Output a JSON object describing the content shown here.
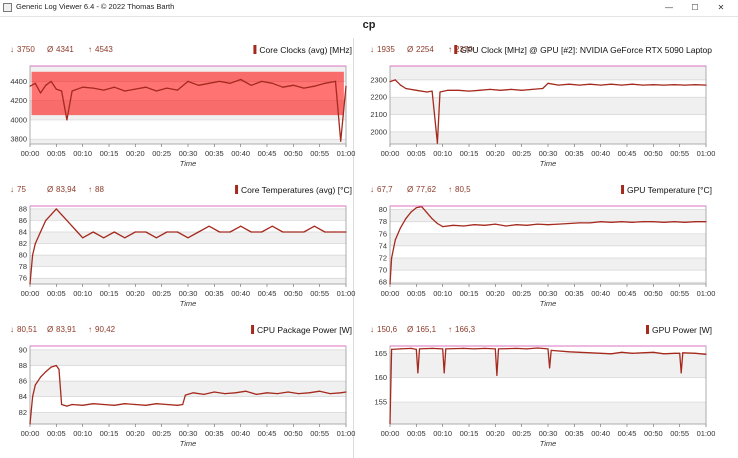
{
  "window": {
    "app_title": "Generic Log Viewer 6.4 - © 2022 Thomas Barth",
    "minimize_glyph": "—",
    "maximize_glyph": "☐",
    "close_glyph": "✕"
  },
  "page_title": "cp",
  "colors": {
    "series": "#a52a1e",
    "band": "#ff0000",
    "stat_text": "#8b3a2a",
    "glitch": "#ff4dd2",
    "plot_bg_light": "#ffffff",
    "plot_bg_dark": "#f0f0f0",
    "grid": "#d4d4d4"
  },
  "chart_data": [
    {
      "id": "core-clocks",
      "type": "line",
      "title": "Core Clocks (avg) [MHz]",
      "stats": {
        "min": "3750",
        "avg": "4341",
        "max": "4543"
      },
      "xlabel": "Time",
      "x_ticks": [
        "00:00",
        "00:05",
        "00:10",
        "00:15",
        "00:20",
        "00:25",
        "00:30",
        "00:35",
        "00:40",
        "00:45",
        "00:50",
        "00:55",
        "01:00"
      ],
      "y_ticks": [
        3800,
        4000,
        4200,
        4400
      ],
      "ylim": [
        3750,
        4560
      ],
      "series": [
        {
          "values": [
            [
              0,
              4350
            ],
            [
              1,
              4380
            ],
            [
              2,
              4280
            ],
            [
              3,
              4360
            ],
            [
              4,
              4400
            ],
            [
              5,
              4320
            ],
            [
              6,
              4300
            ],
            [
              7,
              4000
            ],
            [
              8,
              4300
            ],
            [
              10,
              4340
            ],
            [
              12,
              4330
            ],
            [
              14,
              4310
            ],
            [
              16,
              4340
            ],
            [
              18,
              4300
            ],
            [
              20,
              4320
            ],
            [
              22,
              4340
            ],
            [
              24,
              4300
            ],
            [
              26,
              4330
            ],
            [
              28,
              4310
            ],
            [
              30,
              4400
            ],
            [
              32,
              4360
            ],
            [
              34,
              4380
            ],
            [
              36,
              4400
            ],
            [
              38,
              4380
            ],
            [
              40,
              4420
            ],
            [
              42,
              4360
            ],
            [
              44,
              4400
            ],
            [
              46,
              4380
            ],
            [
              48,
              4340
            ],
            [
              50,
              4360
            ],
            [
              52,
              4330
            ],
            [
              54,
              4350
            ],
            [
              56,
              4380
            ],
            [
              58,
              4400
            ],
            [
              59,
              3780
            ],
            [
              60,
              4350
            ]
          ]
        }
      ],
      "band": {
        "low": 4050,
        "high": 4500
      }
    },
    {
      "id": "gpu-clock",
      "type": "line",
      "title": "GPU Clock [MHz] @ GPU [#2]: NVIDIA GeForce RTX 5090 Laptop",
      "stats": {
        "min": "1935",
        "avg": "2254",
        "max": "2370"
      },
      "xlabel": "Time",
      "x_ticks": [
        "00:00",
        "00:05",
        "00:10",
        "00:15",
        "00:20",
        "00:25",
        "00:30",
        "00:35",
        "00:40",
        "00:45",
        "00:50",
        "00:55",
        "01:00"
      ],
      "y_ticks": [
        2000,
        2100,
        2200,
        2300
      ],
      "ylim": [
        1930,
        2380
      ],
      "series": [
        {
          "values": [
            [
              0,
              2290
            ],
            [
              1,
              2300
            ],
            [
              2,
              2270
            ],
            [
              3,
              2250
            ],
            [
              5,
              2240
            ],
            [
              7,
              2230
            ],
            [
              8,
              2235
            ],
            [
              9,
              1935
            ],
            [
              9.5,
              2230
            ],
            [
              11,
              2240
            ],
            [
              13,
              2240
            ],
            [
              15,
              2235
            ],
            [
              17,
              2240
            ],
            [
              19,
              2245
            ],
            [
              21,
              2240
            ],
            [
              23,
              2245
            ],
            [
              25,
              2240
            ],
            [
              27,
              2245
            ],
            [
              29,
              2250
            ],
            [
              30,
              2280
            ],
            [
              32,
              2270
            ],
            [
              34,
              2275
            ],
            [
              36,
              2270
            ],
            [
              38,
              2275
            ],
            [
              40,
              2270
            ],
            [
              42,
              2275
            ],
            [
              44,
              2270
            ],
            [
              46,
              2275
            ],
            [
              48,
              2270
            ],
            [
              50,
              2272
            ],
            [
              52,
              2270
            ],
            [
              54,
              2272
            ],
            [
              56,
              2270
            ],
            [
              58,
              2272
            ],
            [
              60,
              2270
            ]
          ]
        }
      ]
    },
    {
      "id": "core-temperatures",
      "type": "line",
      "title": "Core Temperatures (avg) [°C]",
      "stats": {
        "min": "75",
        "avg": "83,94",
        "max": "88"
      },
      "xlabel": "Time",
      "x_ticks": [
        "00:00",
        "00:05",
        "00:10",
        "00:15",
        "00:20",
        "00:25",
        "00:30",
        "00:35",
        "00:40",
        "00:45",
        "00:50",
        "00:55",
        "01:00"
      ],
      "y_ticks": [
        76,
        78,
        80,
        82,
        84,
        86,
        88
      ],
      "ylim": [
        75,
        88.5
      ],
      "series": [
        {
          "values": [
            [
              0,
              75
            ],
            [
              0.5,
              80
            ],
            [
              1,
              82
            ],
            [
              2,
              84
            ],
            [
              3,
              86
            ],
            [
              4,
              87
            ],
            [
              5,
              88
            ],
            [
              6,
              87
            ],
            [
              7,
              86
            ],
            [
              8,
              85
            ],
            [
              9,
              84
            ],
            [
              10,
              83
            ],
            [
              12,
              84
            ],
            [
              14,
              83
            ],
            [
              16,
              84
            ],
            [
              18,
              83
            ],
            [
              20,
              84
            ],
            [
              22,
              84
            ],
            [
              24,
              83
            ],
            [
              26,
              84
            ],
            [
              28,
              84
            ],
            [
              30,
              83
            ],
            [
              32,
              84
            ],
            [
              34,
              85
            ],
            [
              36,
              84
            ],
            [
              38,
              84
            ],
            [
              40,
              85
            ],
            [
              42,
              84
            ],
            [
              44,
              84
            ],
            [
              46,
              85
            ],
            [
              48,
              84
            ],
            [
              50,
              84
            ],
            [
              52,
              84
            ],
            [
              54,
              85
            ],
            [
              56,
              84
            ],
            [
              58,
              84
            ],
            [
              60,
              84
            ]
          ]
        }
      ]
    },
    {
      "id": "gpu-temperature",
      "type": "line",
      "title": "GPU Temperature [°C]",
      "stats": {
        "min": "67,7",
        "avg": "77,62",
        "max": "80,5"
      },
      "xlabel": "Time",
      "x_ticks": [
        "00:00",
        "00:05",
        "00:10",
        "00:15",
        "00:20",
        "00:25",
        "00:30",
        "00:35",
        "00:40",
        "00:45",
        "00:50",
        "00:55",
        "01:00"
      ],
      "y_ticks": [
        68,
        70,
        72,
        74,
        76,
        78,
        80
      ],
      "ylim": [
        67.7,
        80.6
      ],
      "series": [
        {
          "values": [
            [
              0,
              67.7
            ],
            [
              0.3,
              72
            ],
            [
              1,
              75
            ],
            [
              2,
              77
            ],
            [
              3,
              78.5
            ],
            [
              4,
              79.6
            ],
            [
              5,
              80.3
            ],
            [
              6,
              80.5
            ],
            [
              7,
              79.5
            ],
            [
              8,
              78.5
            ],
            [
              9,
              77.7
            ],
            [
              10,
              77.2
            ],
            [
              12,
              77.4
            ],
            [
              14,
              77.3
            ],
            [
              16,
              77.5
            ],
            [
              18,
              77.4
            ],
            [
              20,
              77.6
            ],
            [
              22,
              77.3
            ],
            [
              24,
              77.5
            ],
            [
              26,
              77.4
            ],
            [
              28,
              77.6
            ],
            [
              30,
              77.5
            ],
            [
              32,
              77.6
            ],
            [
              34,
              77.7
            ],
            [
              36,
              77.8
            ],
            [
              38,
              77.8
            ],
            [
              40,
              78
            ],
            [
              42,
              77.9
            ],
            [
              44,
              78
            ],
            [
              46,
              77.9
            ],
            [
              48,
              78
            ],
            [
              50,
              78
            ],
            [
              52,
              77.9
            ],
            [
              54,
              78
            ],
            [
              56,
              77.9
            ],
            [
              58,
              78
            ],
            [
              60,
              78
            ]
          ]
        }
      ]
    },
    {
      "id": "cpu-package-power",
      "type": "line",
      "title": "CPU Package Power [W]",
      "stats": {
        "min": "80,51",
        "avg": "83,91",
        "max": "90,42"
      },
      "xlabel": "Time",
      "x_ticks": [
        "00:00",
        "00:05",
        "00:10",
        "00:15",
        "00:20",
        "00:25",
        "00:30",
        "00:35",
        "00:40",
        "00:45",
        "00:50",
        "00:55",
        "01:00"
      ],
      "y_ticks": [
        82,
        84,
        86,
        88,
        90
      ],
      "ylim": [
        80.5,
        90.5
      ],
      "series": [
        {
          "values": [
            [
              0,
              80.5
            ],
            [
              0.5,
              84
            ],
            [
              1,
              85.5
            ],
            [
              2,
              86.5
            ],
            [
              3,
              87.2
            ],
            [
              4,
              87.8
            ],
            [
              5,
              88
            ],
            [
              5.5,
              87.5
            ],
            [
              6,
              83
            ],
            [
              7,
              82.8
            ],
            [
              8,
              83
            ],
            [
              10,
              82.9
            ],
            [
              12,
              83.1
            ],
            [
              14,
              83
            ],
            [
              16,
              82.9
            ],
            [
              18,
              83.1
            ],
            [
              20,
              83
            ],
            [
              22,
              82.9
            ],
            [
              24,
              83.1
            ],
            [
              26,
              83
            ],
            [
              28,
              82.9
            ],
            [
              29,
              83
            ],
            [
              29.5,
              84.2
            ],
            [
              31,
              84.5
            ],
            [
              33,
              84.3
            ],
            [
              35,
              84.6
            ],
            [
              37,
              84.4
            ],
            [
              39,
              84.5
            ],
            [
              41,
              84.7
            ],
            [
              43,
              84.3
            ],
            [
              45,
              84.5
            ],
            [
              47,
              84.4
            ],
            [
              49,
              84.6
            ],
            [
              51,
              84.4
            ],
            [
              53,
              84.5
            ],
            [
              55,
              84.7
            ],
            [
              57,
              84.4
            ],
            [
              59,
              84.5
            ],
            [
              60,
              84.6
            ]
          ]
        }
      ]
    },
    {
      "id": "gpu-power",
      "type": "line",
      "title": "GPU Power [W]",
      "stats": {
        "min": "150,6",
        "avg": "165,1",
        "max": "166,3"
      },
      "xlabel": "Time",
      "x_ticks": [
        "00:00",
        "00:05",
        "00:10",
        "00:15",
        "00:20",
        "00:25",
        "00:30",
        "00:35",
        "00:40",
        "00:45",
        "00:50",
        "00:55",
        "01:00"
      ],
      "y_ticks": [
        155,
        160,
        165
      ],
      "ylim": [
        150.5,
        166.5
      ],
      "series": [
        {
          "values": [
            [
              0,
              150.6
            ],
            [
              0.3,
              165.8
            ],
            [
              2,
              165.9
            ],
            [
              4,
              166
            ],
            [
              5,
              165.8
            ],
            [
              5.3,
              161
            ],
            [
              5.6,
              165.9
            ],
            [
              8,
              166
            ],
            [
              10,
              165.9
            ],
            [
              10.3,
              161
            ],
            [
              10.6,
              165.9
            ],
            [
              14,
              166
            ],
            [
              16,
              165.9
            ],
            [
              18,
              166
            ],
            [
              20,
              165.9
            ],
            [
              20.3,
              160.5
            ],
            [
              20.6,
              165.9
            ],
            [
              24,
              166
            ],
            [
              26,
              165.9
            ],
            [
              28,
              166.1
            ],
            [
              30,
              165.9
            ],
            [
              30.3,
              162
            ],
            [
              30.6,
              165.6
            ],
            [
              34,
              165.3
            ],
            [
              36,
              165.2
            ],
            [
              38,
              165.1
            ],
            [
              40,
              165
            ],
            [
              42,
              164.9
            ],
            [
              44,
              165.2
            ],
            [
              46,
              165
            ],
            [
              48,
              165.1
            ],
            [
              50,
              165.2
            ],
            [
              52,
              164.9
            ],
            [
              54,
              165
            ],
            [
              55,
              165
            ],
            [
              55.3,
              161
            ],
            [
              55.6,
              165.1
            ],
            [
              58,
              165
            ],
            [
              60,
              164.8
            ]
          ]
        }
      ]
    }
  ]
}
